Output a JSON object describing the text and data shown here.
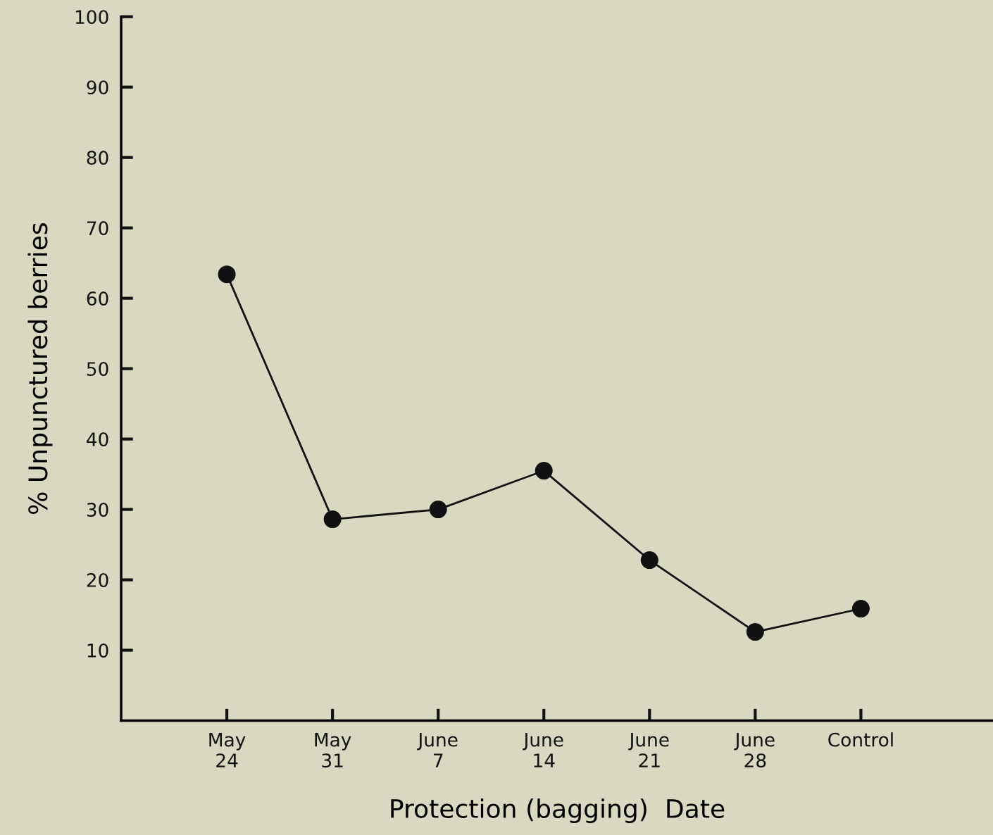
{
  "chart_data": {
    "type": "line",
    "xlabel": "Protection (bagging)  Date",
    "ylabel": "% Unpunctured berries",
    "categories": [
      "May\n24",
      "May\n31",
      "June\n7",
      "June\n14",
      "June\n21",
      "June\n28",
      "Control"
    ],
    "series": [
      {
        "color": "#111111",
        "values": [
          63.4,
          28.6,
          30.0,
          35.5,
          22.8,
          12.6,
          15.9
        ]
      }
    ],
    "ylim": [
      0,
      100
    ],
    "yticks": [
      10,
      20,
      30,
      40,
      50,
      60,
      70,
      80,
      90,
      100
    ],
    "marker": "circle",
    "line_style": "solid",
    "grid": false,
    "legend": false
  }
}
